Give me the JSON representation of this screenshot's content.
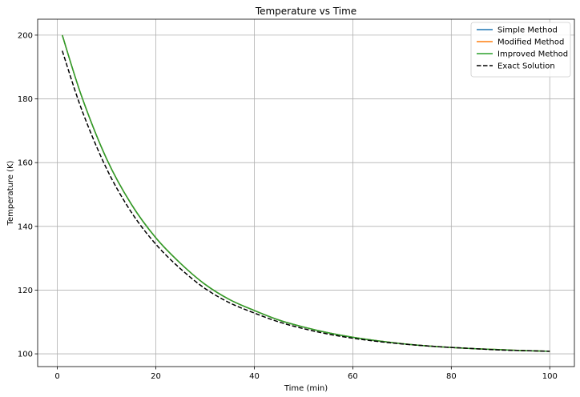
{
  "chart_data": {
    "type": "line",
    "title": "Temperature vs Time",
    "xlabel": "Time (min)",
    "ylabel": "Temperature (K)",
    "xlim": [
      -4,
      105
    ],
    "ylim": [
      96,
      205
    ],
    "xticks": [
      0,
      20,
      40,
      60,
      80,
      100
    ],
    "yticks": [
      100,
      120,
      140,
      160,
      180,
      200
    ],
    "grid": true,
    "legend_position": "top-right",
    "series": [
      {
        "name": "Simple Method",
        "color": "#1f77b4",
        "style": "solid",
        "x": [
          1,
          5,
          10,
          15,
          20,
          25,
          30,
          35,
          40,
          45,
          50,
          55,
          60,
          65,
          70,
          75,
          80,
          85,
          90,
          95,
          100
        ],
        "y": [
          200.0,
          180.5,
          161.2,
          147.0,
          136.4,
          128.4,
          121.8,
          117.0,
          113.6,
          110.6,
          108.4,
          106.6,
          105.2,
          104.1,
          103.2,
          102.5,
          102.0,
          101.6,
          101.3,
          101.0,
          100.8
        ]
      },
      {
        "name": "Modified Method",
        "color": "#ff7f0e",
        "style": "solid",
        "x": [
          1,
          5,
          10,
          15,
          20,
          25,
          30,
          35,
          40,
          45,
          50,
          55,
          60,
          65,
          70,
          75,
          80,
          85,
          90,
          95,
          100
        ],
        "y": [
          200.0,
          180.5,
          161.2,
          147.0,
          136.4,
          128.4,
          121.8,
          117.0,
          113.6,
          110.6,
          108.4,
          106.6,
          105.2,
          104.1,
          103.2,
          102.5,
          102.0,
          101.6,
          101.3,
          101.0,
          100.8
        ]
      },
      {
        "name": "Improved Method",
        "color": "#2ca02c",
        "style": "solid",
        "x": [
          1,
          5,
          10,
          15,
          20,
          25,
          30,
          35,
          40,
          45,
          50,
          55,
          60,
          65,
          70,
          75,
          80,
          85,
          90,
          95,
          100
        ],
        "y": [
          200.0,
          180.5,
          161.2,
          147.0,
          136.4,
          128.4,
          121.8,
          117.0,
          113.6,
          110.6,
          108.4,
          106.6,
          105.2,
          104.1,
          103.2,
          102.5,
          102.0,
          101.6,
          101.3,
          101.0,
          100.8
        ]
      },
      {
        "name": "Exact Solution",
        "color": "#000000",
        "style": "dashed",
        "x": [
          1,
          5,
          10,
          15,
          20,
          25,
          30,
          35,
          40,
          45,
          50,
          55,
          60,
          65,
          70,
          75,
          80,
          85,
          90,
          95,
          100
        ],
        "y": [
          195.1,
          176.4,
          158.1,
          144.5,
          134.4,
          126.7,
          120.5,
          116.0,
          112.8,
          110.0,
          107.9,
          106.2,
          104.9,
          103.9,
          103.1,
          102.5,
          102.0,
          101.6,
          101.2,
          101.0,
          100.8
        ]
      }
    ]
  }
}
